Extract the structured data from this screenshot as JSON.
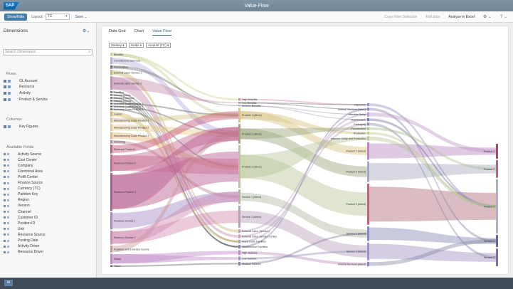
{
  "app": {
    "logo": "SAP",
    "title": "Value Flow"
  },
  "toolbar": {
    "showhide": "Show/Hide",
    "layout_label": "Layout:",
    "layout_value": "TC",
    "save": "Save",
    "copy_filter": "Copy Filter Selection",
    "edit_data": "Edit data",
    "analyze": "Analyze in Excel",
    "icons": [
      "gear-icon",
      "help-icon"
    ]
  },
  "dimensions": {
    "title": "Dimensions",
    "search_placeholder": "Search Dimensions",
    "rows_title": "Rows",
    "rows": [
      "GL Account",
      "Resource",
      "Activity",
      "Product & Service"
    ],
    "columns_title": "Columns",
    "columns": [
      "Key Figures"
    ],
    "available_title": "Available Fields",
    "available": [
      "Activity Source",
      "Cost Center",
      "Company",
      "Functional Area",
      "Profit Center",
      "Finance Source",
      "Currency (TC)",
      "Partition Key",
      "Region",
      "Version",
      "Channel",
      "Customer ID",
      "Position ID",
      "Unit",
      "Resource Source",
      "Posting Date",
      "Activity Driver",
      "Resource Driver"
    ]
  },
  "main": {
    "tabs": [
      "Data Grid",
      "Chart",
      "Value Flow"
    ],
    "selected_tab": "Value Flow",
    "controls": [
      "Sankey ▾",
      "Fields ▾",
      "Amount (TC) ▾"
    ]
  },
  "sankey": {
    "level0": [
      {
        "label": "Benefits",
        "color": "#c9d49a"
      },
      {
        "label": "Commissions and Fees",
        "color": "#b8aedb"
      },
      {
        "label": "Depreciation",
        "color": "#7a7a7a"
      },
      {
        "label": "External Labor Service 1",
        "color": "#c4b870"
      },
      {
        "label": "External Labor Service 2",
        "color": "#c48fb0"
      },
      {
        "label": "Facilities",
        "color": "#6b6b6b"
      },
      {
        "label": "Interest Assets",
        "color": "#6b6b6b"
      },
      {
        "label": "Interest Expenses",
        "color": "#6b6b6b"
      },
      {
        "label": "Interest Income",
        "color": "#6b6b6b"
      },
      {
        "label": "Inventory Costs Product 1",
        "color": "#6b6b6b"
      },
      {
        "label": "Inventory Costs Product 2",
        "color": "#6b6b6b"
      },
      {
        "label": "Inventory Costs Product 3",
        "color": "#6b6b6b"
      },
      {
        "label": "Leases",
        "color": "#d4b86a"
      },
      {
        "label": "Manufacturing Costs Product 1",
        "color": "#d6c58a"
      },
      {
        "label": "Manufacturing Costs Product 2",
        "color": "#e6c98a"
      },
      {
        "label": "Manufacturing Costs Product 3",
        "color": "#e6b87a"
      },
      {
        "label": "Marketing",
        "color": "#c28a9a"
      },
      {
        "label": "Revenue Product 1",
        "color": "#c0577a"
      },
      {
        "label": "Revenue Product 2",
        "color": "#c86a90"
      },
      {
        "label": "Revenue Product 3",
        "color": "#b5598a"
      },
      {
        "label": "Revenue Service 1",
        "color": "#a488c8"
      },
      {
        "label": "Revenue Service 2",
        "color": "#d08ab0"
      },
      {
        "label": "Royalties and Licenses Income",
        "color": "#c79a9a"
      },
      {
        "label": "Salary",
        "color": "#c08ac8"
      },
      {
        "label": "Travel",
        "color": "#6b6b6b"
      }
    ],
    "level1": [
      {
        "label": "High Benefits",
        "color": "#d88aa0"
      },
      {
        "label": "Low Benefits",
        "color": "#6b6b6b"
      },
      {
        "label": "Medium Benefits",
        "color": "#9aa0b0"
      },
      {
        "label": "Product 1 (direct)",
        "color": "#d8c480"
      },
      {
        "label": "Product 2 (direct)",
        "color": "#9ca67c"
      },
      {
        "label": "Product 3 (direct)",
        "color": "#b9c69a"
      },
      {
        "label": "Service 1 (direct)",
        "color": "#b0b8a0"
      },
      {
        "label": "Service 2 (direct)",
        "color": "#b8a0b8"
      },
      {
        "label": "External Labor Service 1",
        "color": "#c0a0c8"
      },
      {
        "label": "External Labor Service 2 (Flat)",
        "color": "#c8a0b8"
      },
      {
        "label": "Fixed Costs Facilities",
        "color": "#b0a0c0"
      },
      {
        "label": "Infrastructure Facilities",
        "color": "#8a8ab0"
      },
      {
        "label": "High Salaries",
        "color": "#c090c0"
      },
      {
        "label": "Low Salaries",
        "color": "#9a9ac0"
      },
      {
        "label": "Medium Salaries",
        "color": "#8888a8"
      }
    ],
    "level2": [
      {
        "label": "Inspection",
        "color": "#9a90c0"
      },
      {
        "label": "Internal Services (Vacc.)",
        "color": "#8a8aa8"
      },
      {
        "label": "Machine Setup",
        "color": "#c09ac8"
      },
      {
        "label": "Maintenance",
        "color": "#7a7aa0"
      },
      {
        "label": "Packaging",
        "color": "#8a8ab0"
      },
      {
        "label": "Procurement",
        "color": "#b0c090"
      },
      {
        "label": "Production",
        "color": "#c0c890"
      },
      {
        "label": "Machine Setup and Production",
        "color": "#b8c4a0"
      },
      {
        "label": "Product 1 (direct)",
        "color": "#b888c0"
      },
      {
        "label": "Product 2 (direct)",
        "color": "#a8a8c0"
      },
      {
        "label": "Product 3 (direct)",
        "color": "#b06a78"
      },
      {
        "label": "Service 1 (direct)",
        "color": "#8a8ab8"
      },
      {
        "label": "Service 2 (direct)",
        "color": "#a090c0"
      },
      {
        "label": "Internal Services (direct)",
        "color": "#8a8aa8"
      }
    ],
    "level3": [
      {
        "label": "Product 1",
        "color": "#b0485a"
      },
      {
        "label": "Product 2",
        "color": "#c85a80"
      },
      {
        "label": "Product 3",
        "color": "#a8b0d0"
      },
      {
        "label": "Service 1",
        "color": "#6a6aa0"
      },
      {
        "label": "Service 2",
        "color": "#8a6ab0"
      }
    ]
  },
  "bottom": {
    "icon": "chat-icon"
  }
}
